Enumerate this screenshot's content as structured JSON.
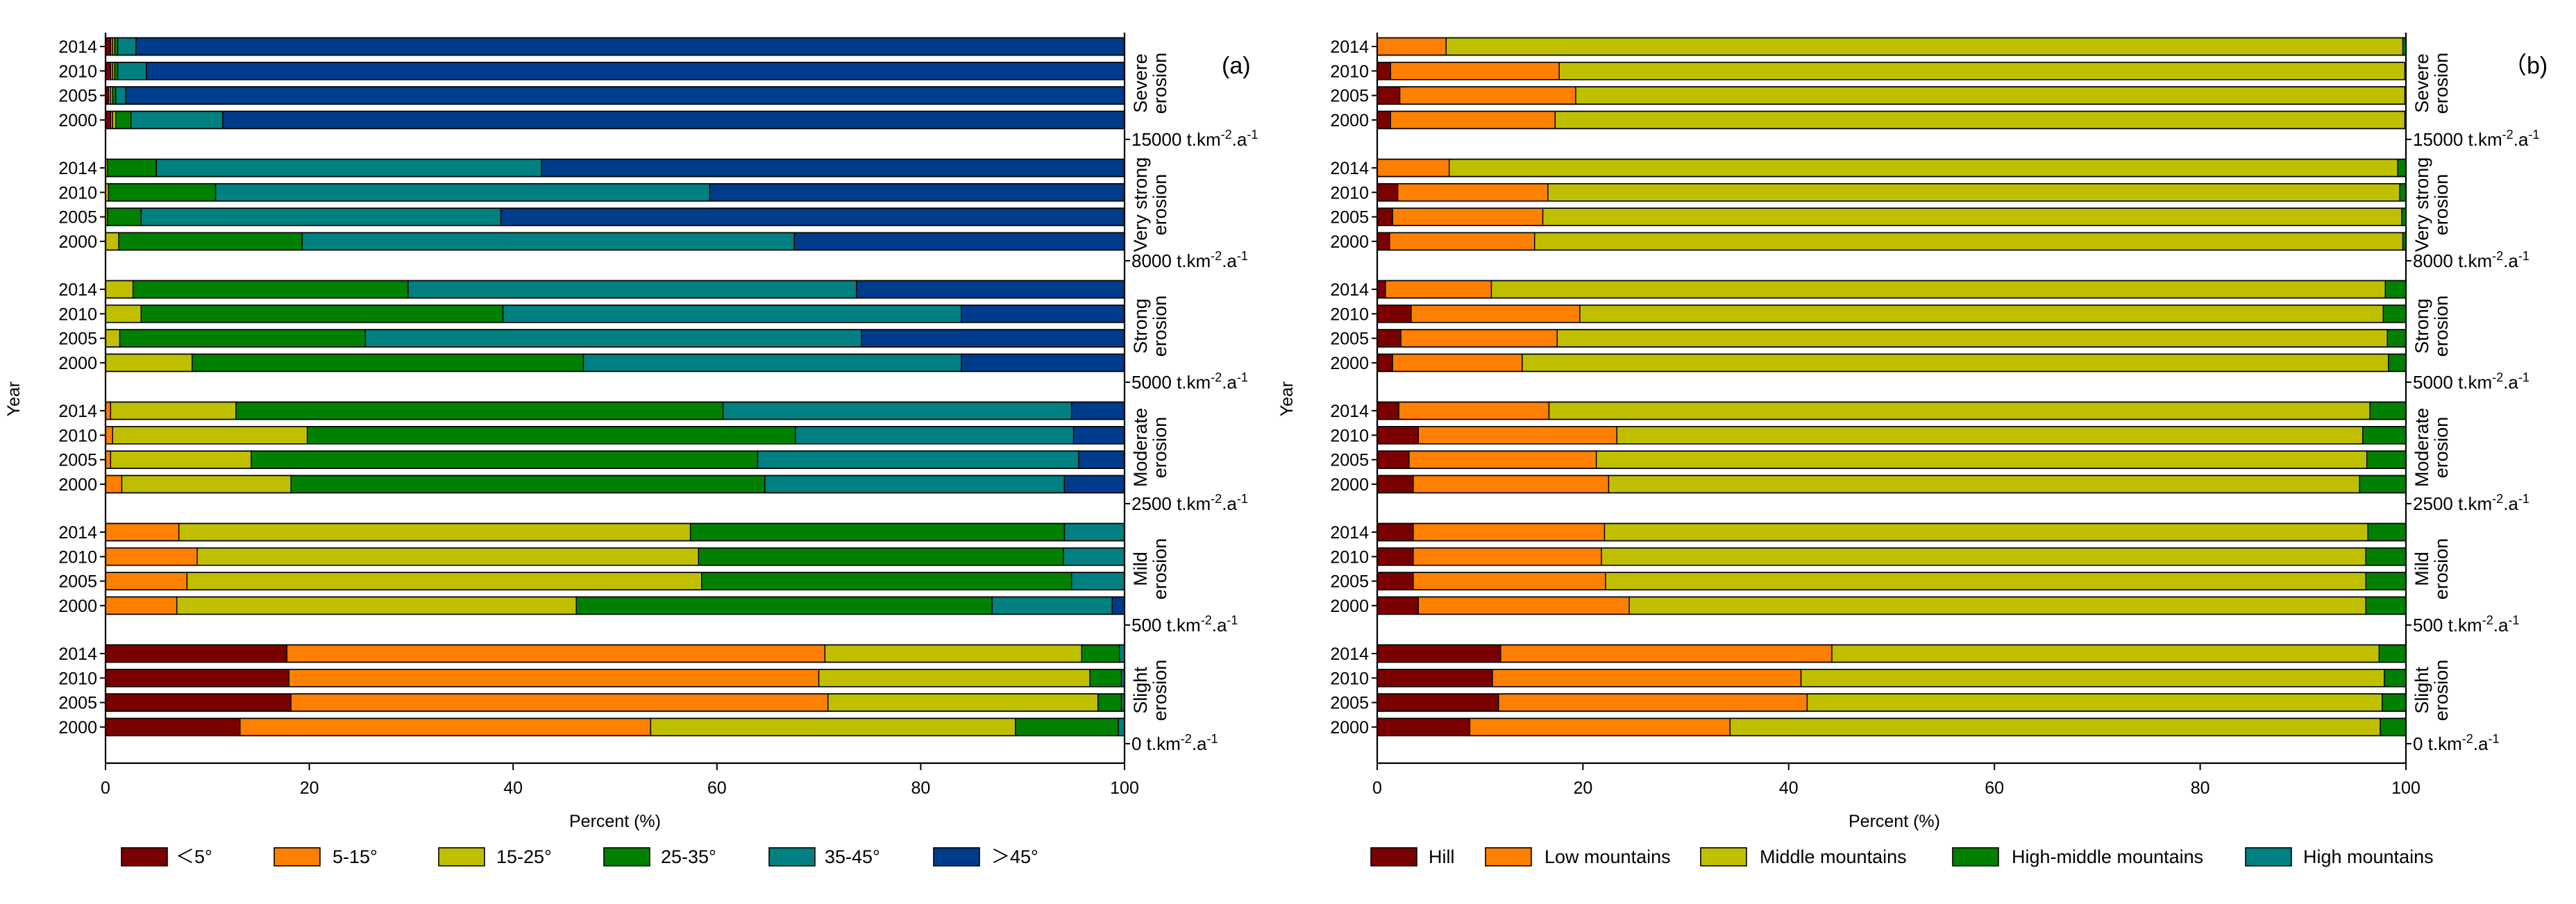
{
  "figure": {
    "panels": [
      "(a)",
      "（b)"
    ]
  },
  "chart_data": [
    {
      "type": "bar",
      "orientation": "horizontal",
      "stacked": true,
      "panel_label": "(a)",
      "xlabel": "Percent (%)",
      "ylabel": "Year",
      "xlim": [
        0,
        100
      ],
      "xticks": [
        "0",
        "20",
        "40",
        "60",
        "80",
        "100"
      ],
      "legend_position": "bottom",
      "series": [
        {
          "name": "＜5°",
          "color": "#7b0000"
        },
        {
          "name": "5-15°",
          "color": "#ff7f00"
        },
        {
          "name": "15-25°",
          "color": "#bfbf00"
        },
        {
          "name": "25-35°",
          "color": "#008000"
        },
        {
          "name": "35-45°",
          "color": "#008080"
        },
        {
          "name": "＞45°",
          "color": "#003c8c"
        }
      ],
      "groups": [
        {
          "label": "Severe erosion",
          "lines": [
            "Severe",
            "erosion"
          ],
          "threshold": "15000 t.km-2.a-1",
          "bars": [
            {
              "year": "2014",
              "values": [
                0.5,
                0.2,
                0.2,
                0.3,
                1.8,
                97.0
              ]
            },
            {
              "year": "2010",
              "values": [
                0.5,
                0.2,
                0.2,
                0.3,
                2.8,
                96.0
              ]
            },
            {
              "year": "2005",
              "values": [
                0.3,
                0.2,
                0.2,
                0.3,
                1.0,
                98.0
              ]
            },
            {
              "year": "2000",
              "values": [
                0.5,
                0.2,
                0.3,
                1.5,
                9.0,
                88.5
              ]
            }
          ]
        },
        {
          "label": "Very strong erosion",
          "lines": [
            "Very strong",
            "erosion"
          ],
          "threshold": "8000 t.km-2.a-1",
          "bars": [
            {
              "year": "2014",
              "values": [
                0.0,
                0.0,
                0.2,
                4.8,
                37.8,
                57.2
              ]
            },
            {
              "year": "2010",
              "values": [
                0.0,
                0.0,
                0.3,
                10.5,
                48.5,
                40.7
              ]
            },
            {
              "year": "2005",
              "values": [
                0.0,
                0.0,
                0.2,
                3.3,
                35.3,
                61.2
              ]
            },
            {
              "year": "2000",
              "values": [
                0.0,
                0.0,
                1.3,
                18.0,
                48.3,
                32.4
              ]
            }
          ]
        },
        {
          "label": "Strong erosion",
          "lines": [
            "Strong",
            "erosion"
          ],
          "threshold": "5000 t.km-2.a-1",
          "bars": [
            {
              "year": "2014",
              "values": [
                0.0,
                0.0,
                2.7,
                27.0,
                44.0,
                26.3
              ]
            },
            {
              "year": "2010",
              "values": [
                0.0,
                0.0,
                3.5,
                35.5,
                45.0,
                16.0
              ]
            },
            {
              "year": "2005",
              "values": [
                0.0,
                0.0,
                1.4,
                24.1,
                48.7,
                25.8
              ]
            },
            {
              "year": "2000",
              "values": [
                0.0,
                0.0,
                8.5,
                38.4,
                37.1,
                16.0
              ]
            }
          ]
        },
        {
          "label": "Moderate erosion",
          "lines": [
            "Moderate",
            "erosion"
          ],
          "threshold": "2500 t.km-2.a-1",
          "bars": [
            {
              "year": "2014",
              "values": [
                0.0,
                0.5,
                12.3,
                47.8,
                34.2,
                5.2
              ]
            },
            {
              "year": "2010",
              "values": [
                0.0,
                0.7,
                19.1,
                47.9,
                27.3,
                5.0
              ]
            },
            {
              "year": "2005",
              "values": [
                0.0,
                0.5,
                13.8,
                49.7,
                31.5,
                4.5
              ]
            },
            {
              "year": "2000",
              "values": [
                0.0,
                1.6,
                16.6,
                46.5,
                29.4,
                5.9
              ]
            }
          ]
        },
        {
          "label": "Mild erosion",
          "lines": [
            "Mild",
            "erosion"
          ],
          "threshold": "500 t.km-2.a-1",
          "bars": [
            {
              "year": "2014",
              "values": [
                0.0,
                7.2,
                50.2,
                36.7,
                5.9,
                0.0
              ]
            },
            {
              "year": "2010",
              "values": [
                0.0,
                9.0,
                49.2,
                35.8,
                6.0,
                0.0
              ]
            },
            {
              "year": "2005",
              "values": [
                0.0,
                8.0,
                50.5,
                36.3,
                5.2,
                0.0
              ]
            },
            {
              "year": "2000",
              "values": [
                0.0,
                7.0,
                39.2,
                40.8,
                11.8,
                1.2
              ]
            }
          ]
        },
        {
          "label": "Slight erosion",
          "lines": [
            "Slight",
            "erosion"
          ],
          "threshold": "0 t.km-2.a-1",
          "bars": [
            {
              "year": "2014",
              "values": [
                17.8,
                52.8,
                25.2,
                3.7,
                0.5,
                0.0
              ]
            },
            {
              "year": "2010",
              "values": [
                18.0,
                52.0,
                26.6,
                3.1,
                0.3,
                0.0
              ]
            },
            {
              "year": "2005",
              "values": [
                18.2,
                52.7,
                26.5,
                2.3,
                0.3,
                0.0
              ]
            },
            {
              "year": "2000",
              "values": [
                13.2,
                40.3,
                35.8,
                10.1,
                0.6,
                0.0
              ]
            }
          ]
        }
      ]
    },
    {
      "type": "bar",
      "orientation": "horizontal",
      "stacked": true,
      "panel_label": "（b)",
      "xlabel": "Percent (%)",
      "ylabel": "Year",
      "xlim": [
        0,
        100
      ],
      "xticks": [
        "0",
        "20",
        "40",
        "60",
        "80",
        "100"
      ],
      "legend_position": "bottom",
      "series": [
        {
          "name": "Hill",
          "color": "#7b0000"
        },
        {
          "name": "Low mountains",
          "color": "#ff7f00"
        },
        {
          "name": "Middle mountains",
          "color": "#bfbf00"
        },
        {
          "name": "High-middle mountains",
          "color": "#008000"
        },
        {
          "name": "High mountains",
          "color": "#008080"
        }
      ],
      "groups": [
        {
          "label": "Severe erosion",
          "lines": [
            "Severe",
            "erosion"
          ],
          "threshold": "15000 t.km-2.a-1",
          "bars": [
            {
              "year": "2014",
              "values": [
                0.0,
                6.7,
                93.0,
                0.3,
                0.0
              ]
            },
            {
              "year": "2010",
              "values": [
                1.3,
                16.4,
                82.2,
                0.1,
                0.0
              ]
            },
            {
              "year": "2005",
              "values": [
                2.2,
                17.1,
                80.6,
                0.1,
                0.0
              ]
            },
            {
              "year": "2000",
              "values": [
                1.3,
                16.0,
                82.6,
                0.1,
                0.0
              ]
            }
          ]
        },
        {
          "label": "Very strong erosion",
          "lines": [
            "Very strong",
            "erosion"
          ],
          "threshold": "8000 t.km-2.a-1",
          "bars": [
            {
              "year": "2014",
              "values": [
                0.0,
                7.0,
                92.2,
                0.8,
                0.0
              ]
            },
            {
              "year": "2010",
              "values": [
                2.0,
                14.6,
                82.8,
                0.6,
                0.0
              ]
            },
            {
              "year": "2005",
              "values": [
                1.5,
                14.6,
                83.5,
                0.4,
                0.0
              ]
            },
            {
              "year": "2000",
              "values": [
                1.2,
                14.1,
                84.4,
                0.3,
                0.0
              ]
            }
          ]
        },
        {
          "label": "Strong erosion",
          "lines": [
            "Strong",
            "erosion"
          ],
          "threshold": "5000 t.km-2.a-1",
          "bars": [
            {
              "year": "2014",
              "values": [
                0.8,
                10.3,
                86.9,
                2.0,
                0.0
              ]
            },
            {
              "year": "2010",
              "values": [
                3.3,
                16.4,
                78.1,
                2.2,
                0.0
              ]
            },
            {
              "year": "2005",
              "values": [
                2.3,
                15.2,
                80.7,
                1.8,
                0.0
              ]
            },
            {
              "year": "2000",
              "values": [
                1.5,
                12.6,
                84.2,
                1.7,
                0.0
              ]
            }
          ]
        },
        {
          "label": "Moderate erosion",
          "lines": [
            "Moderate",
            "erosion"
          ],
          "threshold": "2500 t.km-2.a-1",
          "bars": [
            {
              "year": "2014",
              "values": [
                2.1,
                14.6,
                79.8,
                3.5,
                0.0
              ]
            },
            {
              "year": "2010",
              "values": [
                4.0,
                19.3,
                72.5,
                4.2,
                0.0
              ]
            },
            {
              "year": "2005",
              "values": [
                3.1,
                18.2,
                74.9,
                3.8,
                0.0
              ]
            },
            {
              "year": "2000",
              "values": [
                3.5,
                19.0,
                73.0,
                4.5,
                0.0
              ]
            }
          ]
        },
        {
          "label": "Mild erosion",
          "lines": [
            "Mild",
            "erosion"
          ],
          "threshold": "500 t.km-2.a-1",
          "bars": [
            {
              "year": "2014",
              "values": [
                3.5,
                18.6,
                74.2,
                3.7,
                0.0
              ]
            },
            {
              "year": "2010",
              "values": [
                3.5,
                18.3,
                74.3,
                3.9,
                0.0
              ]
            },
            {
              "year": "2005",
              "values": [
                3.5,
                18.7,
                73.9,
                3.9,
                0.0
              ]
            },
            {
              "year": "2000",
              "values": [
                4.0,
                20.5,
                71.6,
                3.9,
                0.0
              ]
            }
          ]
        },
        {
          "label": "Slight erosion",
          "lines": [
            "Slight",
            "erosion"
          ],
          "threshold": "0 t.km-2.a-1",
          "bars": [
            {
              "year": "2014",
              "values": [
                12.0,
                32.2,
                53.2,
                2.6,
                0.0
              ]
            },
            {
              "year": "2010",
              "values": [
                11.2,
                30.0,
                56.7,
                2.1,
                0.0
              ]
            },
            {
              "year": "2005",
              "values": [
                11.8,
                30.0,
                55.9,
                2.3,
                0.0
              ]
            },
            {
              "year": "2000",
              "values": [
                9.0,
                25.3,
                63.2,
                2.5,
                0.0
              ]
            }
          ]
        }
      ]
    }
  ]
}
